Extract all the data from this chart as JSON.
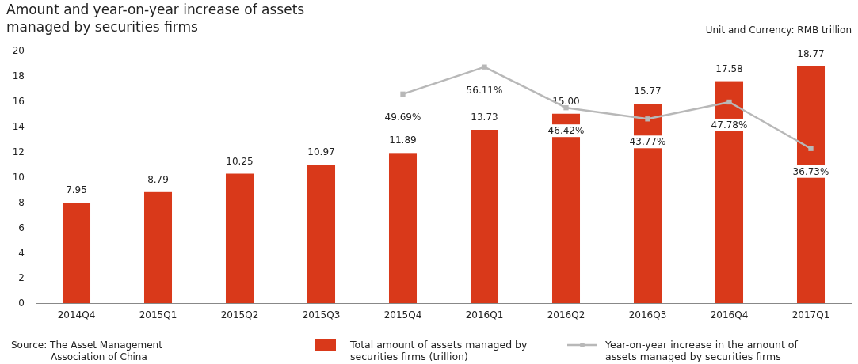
{
  "chart_data": {
    "type": "bar",
    "title": "Amount and year-on-year increase of assets managed by securities firms",
    "annotations": [
      "Unit and Currency: RMB trillion",
      "Source: The Asset Management Association of China"
    ],
    "categories": [
      "2014Q4",
      "2015Q1",
      "2015Q2",
      "2015Q3",
      "2015Q4",
      "2016Q1",
      "2016Q2",
      "2016Q3",
      "2016Q4",
      "2017Q1"
    ],
    "series": [
      {
        "name": "Total amount of assets managed by securities firms (trillion)",
        "color": "#d9391a",
        "values": [
          7.95,
          8.79,
          10.25,
          10.97,
          11.89,
          13.73,
          15.0,
          15.77,
          17.58,
          18.77
        ],
        "value_labels": [
          "7.95",
          "8.79",
          "10.25",
          "10.97",
          "11.89",
          "13.73",
          "15.00",
          "15.77",
          "17.58",
          "18.77"
        ]
      },
      {
        "name": "Year-on-year increase in the amount of assets managed by securities firms",
        "type": "line",
        "axis": "y2",
        "color": "#b8b8b8",
        "marker": "square",
        "values": [
          null,
          null,
          null,
          null,
          49.69,
          56.11,
          46.42,
          43.77,
          47.78,
          36.73
        ],
        "value_labels": [
          null,
          null,
          null,
          null,
          "49.69%",
          "56.11%",
          "46.42%",
          "43.77%",
          "47.78%",
          "36.73%"
        ]
      }
    ],
    "ylim": [
      0,
      20
    ],
    "yticks": [
      0,
      2,
      4,
      6,
      8,
      10,
      12,
      14,
      16,
      18,
      20
    ],
    "y2lim": [
      0,
      60
    ],
    "grid": false,
    "legend": "bottom"
  }
}
